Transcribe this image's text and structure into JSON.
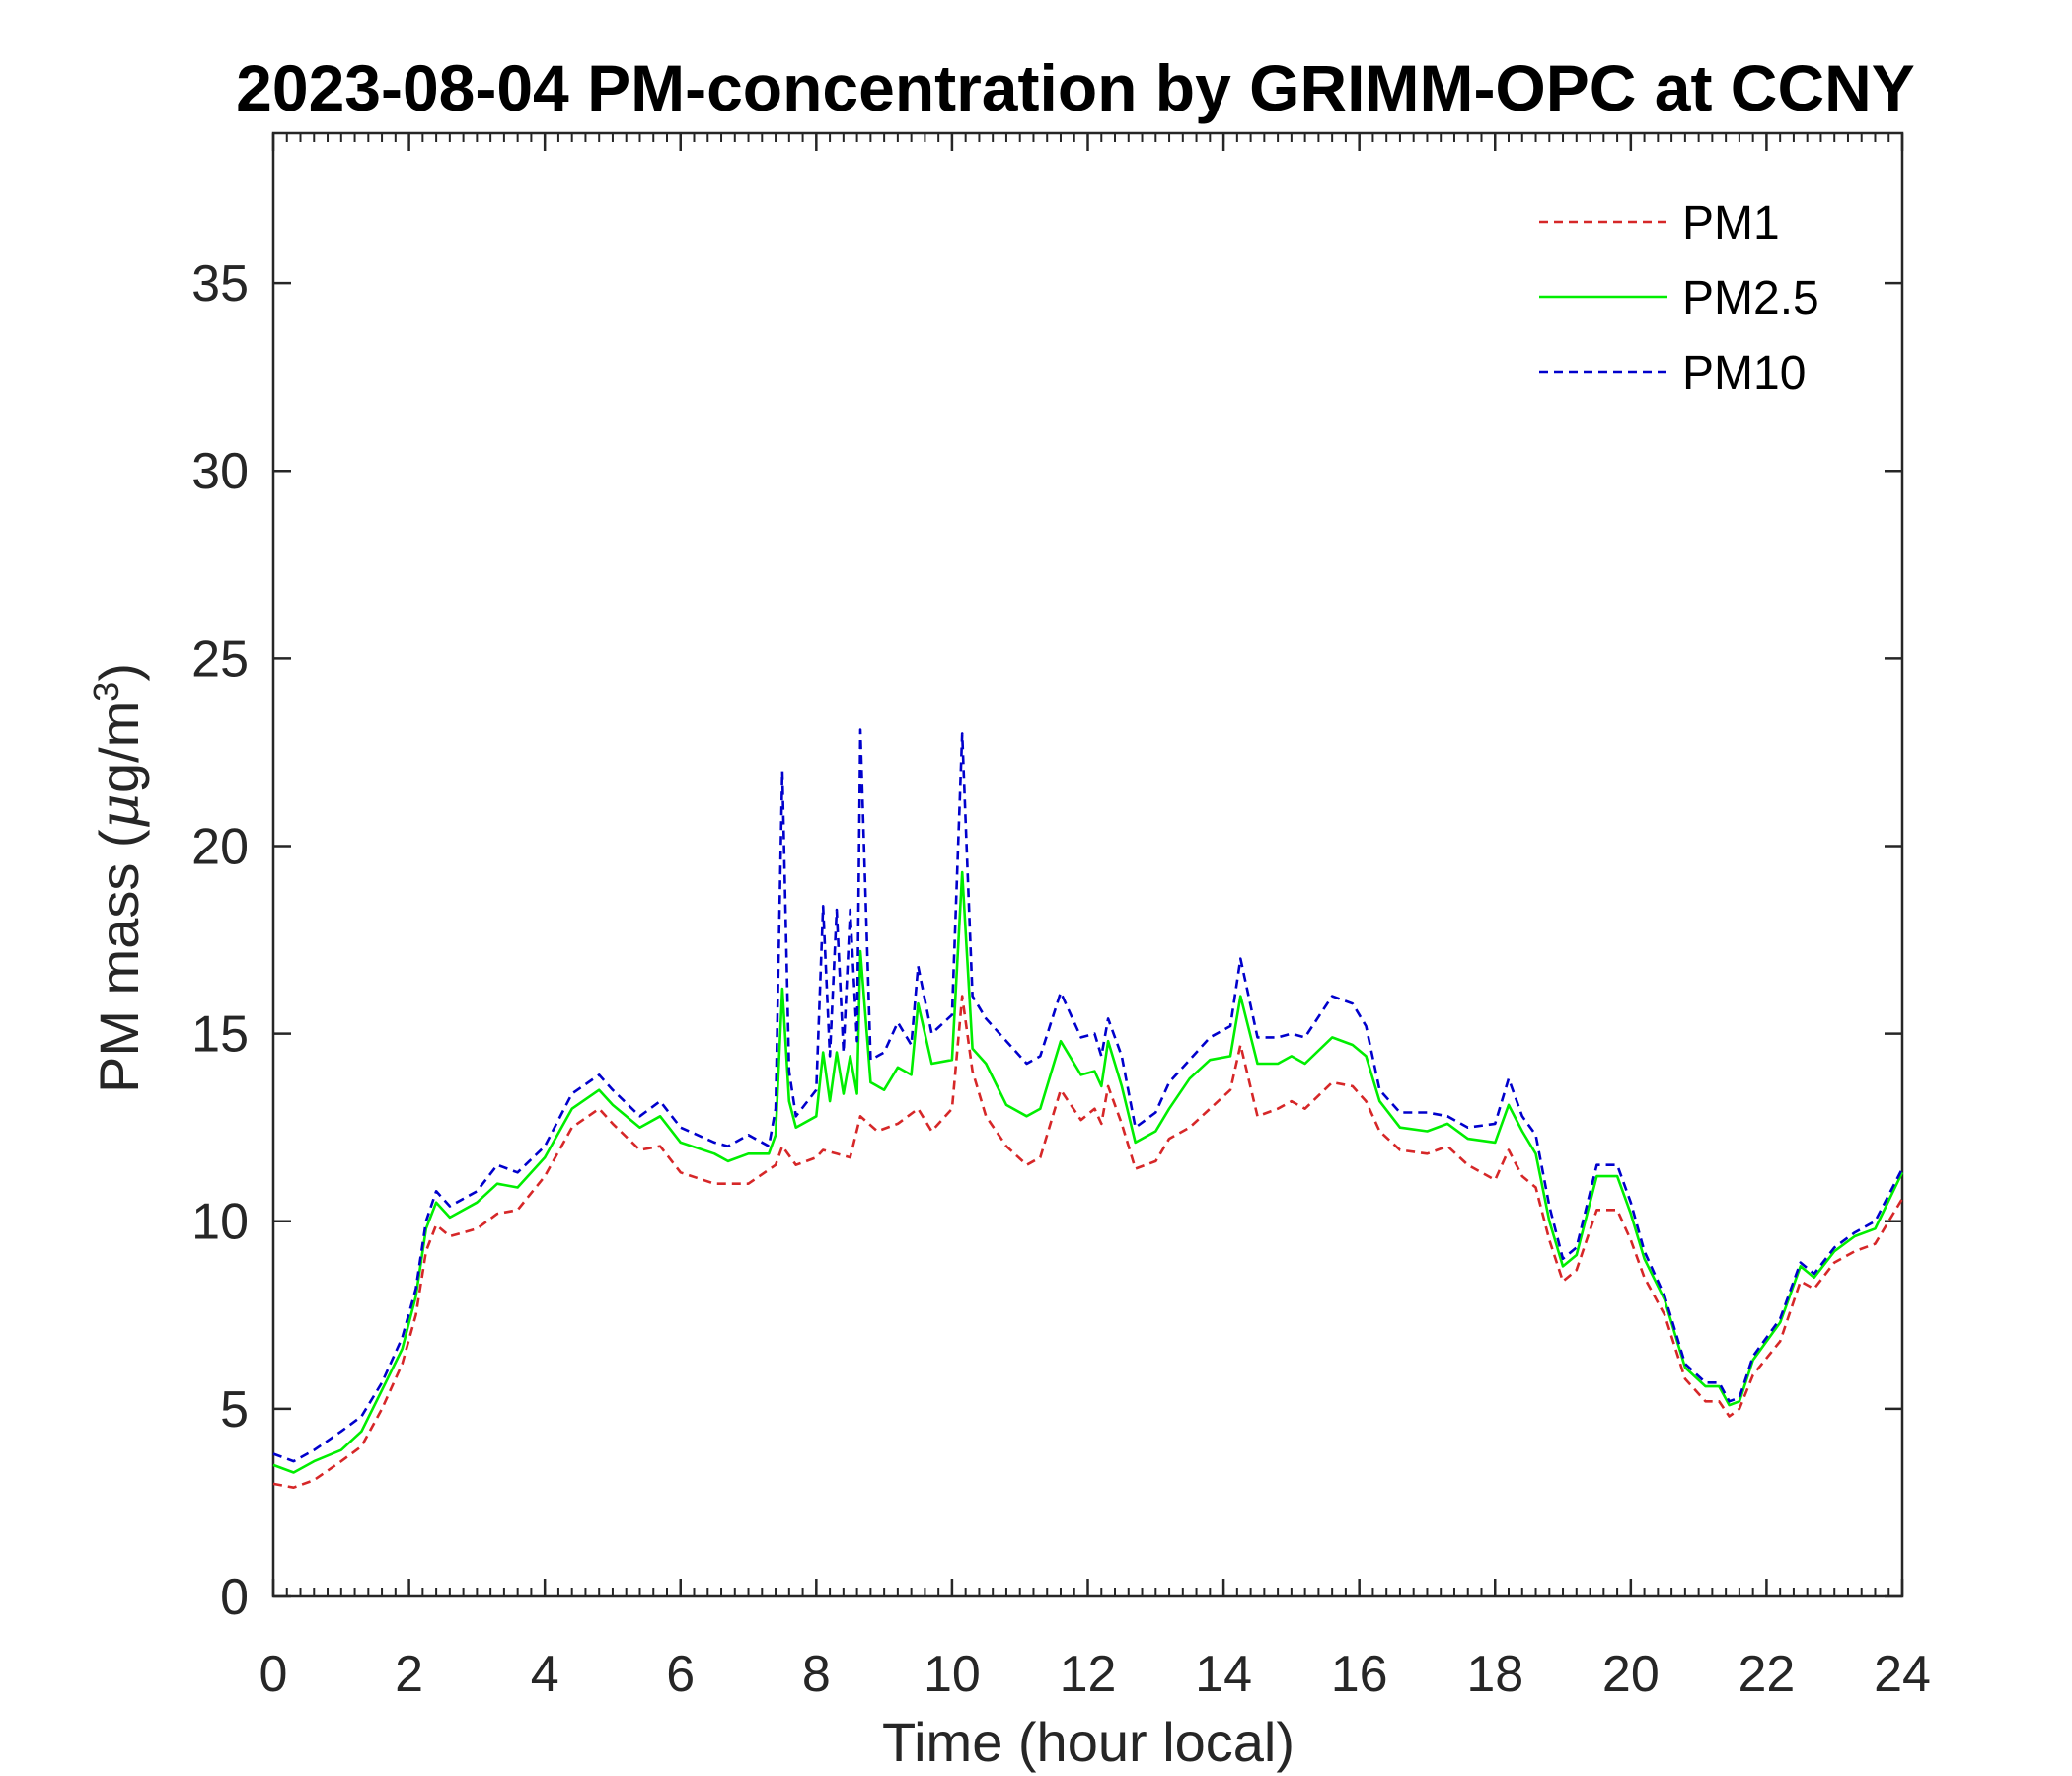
{
  "chart_data": {
    "type": "line",
    "title": "2023-08-04 PM-concentration by GRIMM-OPC at CCNY",
    "xlabel": "Time (hour local)",
    "ylabel": "PM mass (μg/m³)",
    "ylabel_parts": {
      "before": "PM mass (",
      "mu": "μ",
      "unit": "g/m",
      "sup": "3",
      "after": ")"
    },
    "xlim": [
      0,
      24
    ],
    "ylim": [
      0,
      39
    ],
    "xticks": [
      0,
      2,
      4,
      6,
      8,
      10,
      12,
      14,
      16,
      18,
      20,
      22,
      24
    ],
    "yticks": [
      0,
      5,
      10,
      15,
      20,
      25,
      30,
      35
    ],
    "xtick_labels": [
      "0",
      "2",
      "4",
      "6",
      "8",
      "10",
      "12",
      "14",
      "16",
      "18",
      "20",
      "22",
      "24"
    ],
    "ytick_labels": [
      "0",
      "5",
      "10",
      "15",
      "20",
      "25",
      "30",
      "35"
    ],
    "minor_x_step": 0.2,
    "grid": false,
    "legend_position": "top-right",
    "series": [
      {
        "name": "PM1",
        "color": "#d62728",
        "dash": "dashed",
        "points": [
          [
            0,
            3.0
          ],
          [
            0.3,
            2.9
          ],
          [
            0.6,
            3.1
          ],
          [
            1.0,
            3.6
          ],
          [
            1.3,
            4.0
          ],
          [
            1.6,
            5.0
          ],
          [
            1.9,
            6.2
          ],
          [
            2.1,
            7.5
          ],
          [
            2.25,
            9.2
          ],
          [
            2.4,
            9.9
          ],
          [
            2.6,
            9.6
          ],
          [
            3.0,
            9.8
          ],
          [
            3.3,
            10.2
          ],
          [
            3.6,
            10.3
          ],
          [
            4.0,
            11.2
          ],
          [
            4.4,
            12.5
          ],
          [
            4.8,
            13.0
          ],
          [
            5.0,
            12.6
          ],
          [
            5.4,
            11.9
          ],
          [
            5.7,
            12.0
          ],
          [
            6.0,
            11.3
          ],
          [
            6.5,
            11.0
          ],
          [
            7.0,
            11.0
          ],
          [
            7.4,
            11.5
          ],
          [
            7.5,
            12.0
          ],
          [
            7.7,
            11.5
          ],
          [
            8.0,
            11.7
          ],
          [
            8.1,
            11.9
          ],
          [
            8.3,
            11.8
          ],
          [
            8.5,
            11.7
          ],
          [
            8.65,
            12.8
          ],
          [
            8.9,
            12.4
          ],
          [
            9.2,
            12.6
          ],
          [
            9.5,
            13.0
          ],
          [
            9.7,
            12.4
          ],
          [
            10.0,
            13.0
          ],
          [
            10.15,
            16.0
          ],
          [
            10.3,
            14.0
          ],
          [
            10.5,
            12.8
          ],
          [
            10.8,
            12.0
          ],
          [
            11.1,
            11.5
          ],
          [
            11.3,
            11.7
          ],
          [
            11.6,
            13.5
          ],
          [
            11.9,
            12.7
          ],
          [
            12.1,
            13.0
          ],
          [
            12.2,
            12.6
          ],
          [
            12.3,
            13.6
          ],
          [
            12.5,
            12.6
          ],
          [
            12.7,
            11.4
          ],
          [
            13.0,
            11.6
          ],
          [
            13.2,
            12.2
          ],
          [
            13.5,
            12.5
          ],
          [
            13.8,
            13.0
          ],
          [
            14.1,
            13.5
          ],
          [
            14.25,
            14.7
          ],
          [
            14.5,
            12.8
          ],
          [
            14.8,
            13.0
          ],
          [
            15.0,
            13.2
          ],
          [
            15.2,
            13.0
          ],
          [
            15.6,
            13.7
          ],
          [
            15.9,
            13.6
          ],
          [
            16.1,
            13.2
          ],
          [
            16.3,
            12.4
          ],
          [
            16.6,
            11.9
          ],
          [
            17.0,
            11.8
          ],
          [
            17.3,
            12.0
          ],
          [
            17.6,
            11.5
          ],
          [
            18.0,
            11.1
          ],
          [
            18.2,
            11.9
          ],
          [
            18.4,
            11.2
          ],
          [
            18.6,
            10.9
          ],
          [
            18.8,
            9.5
          ],
          [
            19.0,
            8.4
          ],
          [
            19.2,
            8.7
          ],
          [
            19.5,
            10.3
          ],
          [
            19.8,
            10.3
          ],
          [
            20.0,
            9.5
          ],
          [
            20.2,
            8.5
          ],
          [
            20.5,
            7.5
          ],
          [
            20.8,
            5.8
          ],
          [
            21.1,
            5.2
          ],
          [
            21.3,
            5.2
          ],
          [
            21.45,
            4.8
          ],
          [
            21.6,
            5.0
          ],
          [
            21.8,
            5.9
          ],
          [
            22.2,
            6.8
          ],
          [
            22.5,
            8.4
          ],
          [
            22.7,
            8.2
          ],
          [
            23.0,
            8.9
          ],
          [
            23.3,
            9.2
          ],
          [
            23.6,
            9.4
          ],
          [
            24.0,
            10.6
          ]
        ]
      },
      {
        "name": "PM2.5",
        "color": "#00ee00",
        "dash": "solid",
        "points": [
          [
            0,
            3.5
          ],
          [
            0.3,
            3.3
          ],
          [
            0.6,
            3.6
          ],
          [
            1.0,
            3.9
          ],
          [
            1.3,
            4.4
          ],
          [
            1.6,
            5.5
          ],
          [
            1.9,
            6.6
          ],
          [
            2.1,
            8.0
          ],
          [
            2.25,
            9.8
          ],
          [
            2.4,
            10.5
          ],
          [
            2.6,
            10.1
          ],
          [
            3.0,
            10.5
          ],
          [
            3.3,
            11.0
          ],
          [
            3.6,
            10.9
          ],
          [
            4.0,
            11.7
          ],
          [
            4.4,
            13.0
          ],
          [
            4.8,
            13.5
          ],
          [
            5.0,
            13.1
          ],
          [
            5.4,
            12.5
          ],
          [
            5.7,
            12.8
          ],
          [
            6.0,
            12.1
          ],
          [
            6.5,
            11.8
          ],
          [
            6.7,
            11.6
          ],
          [
            7.0,
            11.8
          ],
          [
            7.3,
            11.8
          ],
          [
            7.4,
            12.3
          ],
          [
            7.5,
            16.2
          ],
          [
            7.6,
            13.2
          ],
          [
            7.7,
            12.5
          ],
          [
            8.0,
            12.8
          ],
          [
            8.1,
            14.5
          ],
          [
            8.2,
            13.2
          ],
          [
            8.3,
            14.5
          ],
          [
            8.4,
            13.4
          ],
          [
            8.5,
            14.4
          ],
          [
            8.6,
            13.4
          ],
          [
            8.65,
            17.2
          ],
          [
            8.8,
            13.7
          ],
          [
            9.0,
            13.5
          ],
          [
            9.2,
            14.1
          ],
          [
            9.4,
            13.9
          ],
          [
            9.5,
            15.8
          ],
          [
            9.7,
            14.2
          ],
          [
            10.0,
            14.3
          ],
          [
            10.15,
            19.3
          ],
          [
            10.3,
            14.6
          ],
          [
            10.5,
            14.2
          ],
          [
            10.8,
            13.1
          ],
          [
            11.1,
            12.8
          ],
          [
            11.3,
            13.0
          ],
          [
            11.6,
            14.8
          ],
          [
            11.9,
            13.9
          ],
          [
            12.1,
            14.0
          ],
          [
            12.2,
            13.6
          ],
          [
            12.3,
            14.8
          ],
          [
            12.5,
            13.6
          ],
          [
            12.7,
            12.1
          ],
          [
            13.0,
            12.4
          ],
          [
            13.2,
            13.0
          ],
          [
            13.5,
            13.8
          ],
          [
            13.8,
            14.3
          ],
          [
            14.1,
            14.4
          ],
          [
            14.25,
            16.0
          ],
          [
            14.5,
            14.2
          ],
          [
            14.8,
            14.2
          ],
          [
            15.0,
            14.4
          ],
          [
            15.2,
            14.2
          ],
          [
            15.6,
            14.9
          ],
          [
            15.9,
            14.7
          ],
          [
            16.1,
            14.4
          ],
          [
            16.3,
            13.2
          ],
          [
            16.6,
            12.5
          ],
          [
            17.0,
            12.4
          ],
          [
            17.3,
            12.6
          ],
          [
            17.6,
            12.2
          ],
          [
            18.0,
            12.1
          ],
          [
            18.2,
            13.1
          ],
          [
            18.4,
            12.4
          ],
          [
            18.6,
            11.8
          ],
          [
            18.8,
            10.0
          ],
          [
            19.0,
            8.8
          ],
          [
            19.2,
            9.1
          ],
          [
            19.5,
            11.2
          ],
          [
            19.8,
            11.2
          ],
          [
            20.0,
            10.2
          ],
          [
            20.2,
            9.0
          ],
          [
            20.5,
            7.9
          ],
          [
            20.8,
            6.1
          ],
          [
            21.1,
            5.6
          ],
          [
            21.3,
            5.6
          ],
          [
            21.45,
            5.1
          ],
          [
            21.6,
            5.2
          ],
          [
            21.8,
            6.3
          ],
          [
            22.2,
            7.3
          ],
          [
            22.5,
            8.8
          ],
          [
            22.7,
            8.5
          ],
          [
            23.0,
            9.2
          ],
          [
            23.3,
            9.6
          ],
          [
            23.6,
            9.8
          ],
          [
            24.0,
            11.3
          ]
        ]
      },
      {
        "name": "PM10",
        "color": "#0000cc",
        "dash": "dashed",
        "points": [
          [
            0,
            3.8
          ],
          [
            0.3,
            3.6
          ],
          [
            0.6,
            3.9
          ],
          [
            1.0,
            4.4
          ],
          [
            1.3,
            4.8
          ],
          [
            1.6,
            5.7
          ],
          [
            1.9,
            6.9
          ],
          [
            2.1,
            8.2
          ],
          [
            2.25,
            10.0
          ],
          [
            2.4,
            10.8
          ],
          [
            2.6,
            10.4
          ],
          [
            3.0,
            10.8
          ],
          [
            3.3,
            11.5
          ],
          [
            3.6,
            11.3
          ],
          [
            4.0,
            12.0
          ],
          [
            4.4,
            13.4
          ],
          [
            4.8,
            13.9
          ],
          [
            5.0,
            13.5
          ],
          [
            5.4,
            12.8
          ],
          [
            5.7,
            13.2
          ],
          [
            6.0,
            12.5
          ],
          [
            6.5,
            12.1
          ],
          [
            6.7,
            12.0
          ],
          [
            7.0,
            12.3
          ],
          [
            7.3,
            12.0
          ],
          [
            7.4,
            13.0
          ],
          [
            7.5,
            22.0
          ],
          [
            7.6,
            14.0
          ],
          [
            7.7,
            12.8
          ],
          [
            8.0,
            13.5
          ],
          [
            8.1,
            18.4
          ],
          [
            8.2,
            14.4
          ],
          [
            8.3,
            18.3
          ],
          [
            8.4,
            14.5
          ],
          [
            8.5,
            18.3
          ],
          [
            8.6,
            14.8
          ],
          [
            8.65,
            23.1
          ],
          [
            8.8,
            14.3
          ],
          [
            9.0,
            14.5
          ],
          [
            9.2,
            15.3
          ],
          [
            9.4,
            14.7
          ],
          [
            9.5,
            16.8
          ],
          [
            9.7,
            15.0
          ],
          [
            10.0,
            15.5
          ],
          [
            10.15,
            23.0
          ],
          [
            10.3,
            16.0
          ],
          [
            10.5,
            15.4
          ],
          [
            10.8,
            14.8
          ],
          [
            11.1,
            14.2
          ],
          [
            11.3,
            14.4
          ],
          [
            11.6,
            16.1
          ],
          [
            11.9,
            14.9
          ],
          [
            12.1,
            15.0
          ],
          [
            12.2,
            14.4
          ],
          [
            12.3,
            15.4
          ],
          [
            12.5,
            14.4
          ],
          [
            12.7,
            12.5
          ],
          [
            13.0,
            12.9
          ],
          [
            13.2,
            13.7
          ],
          [
            13.5,
            14.3
          ],
          [
            13.8,
            14.9
          ],
          [
            14.1,
            15.2
          ],
          [
            14.25,
            17.0
          ],
          [
            14.5,
            14.9
          ],
          [
            14.8,
            14.9
          ],
          [
            15.0,
            15.0
          ],
          [
            15.2,
            14.9
          ],
          [
            15.6,
            16.0
          ],
          [
            15.9,
            15.8
          ],
          [
            16.1,
            15.2
          ],
          [
            16.3,
            13.5
          ],
          [
            16.6,
            12.9
          ],
          [
            17.0,
            12.9
          ],
          [
            17.3,
            12.8
          ],
          [
            17.6,
            12.5
          ],
          [
            18.0,
            12.6
          ],
          [
            18.2,
            13.8
          ],
          [
            18.4,
            12.8
          ],
          [
            18.6,
            12.3
          ],
          [
            18.8,
            10.4
          ],
          [
            19.0,
            9.0
          ],
          [
            19.2,
            9.3
          ],
          [
            19.5,
            11.5
          ],
          [
            19.8,
            11.5
          ],
          [
            20.0,
            10.5
          ],
          [
            20.2,
            9.2
          ],
          [
            20.5,
            8.0
          ],
          [
            20.8,
            6.2
          ],
          [
            21.1,
            5.7
          ],
          [
            21.3,
            5.7
          ],
          [
            21.45,
            5.2
          ],
          [
            21.6,
            5.3
          ],
          [
            21.8,
            6.4
          ],
          [
            22.2,
            7.4
          ],
          [
            22.5,
            8.9
          ],
          [
            22.7,
            8.6
          ],
          [
            23.0,
            9.3
          ],
          [
            23.3,
            9.7
          ],
          [
            23.6,
            10.0
          ],
          [
            24.0,
            11.4
          ]
        ]
      }
    ]
  }
}
